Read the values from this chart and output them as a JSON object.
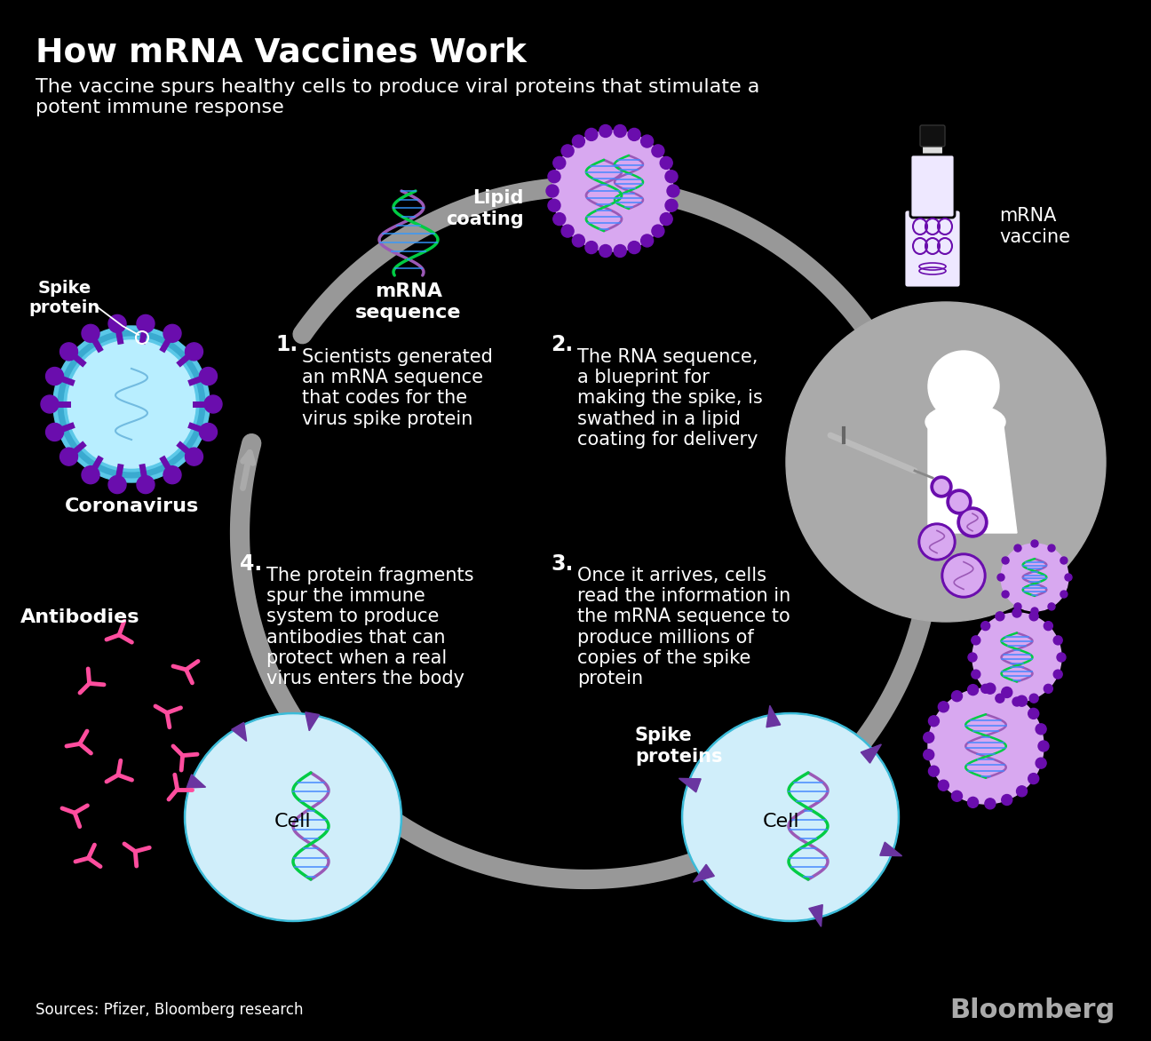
{
  "title": "How mRNA Vaccines Work",
  "subtitle": "The vaccine spurs healthy cells to produce viral proteins that stimulate a\npotent immune response",
  "bg_color": "#000000",
  "sources": "Sources: Pfizer, Bloomberg research",
  "bloomberg": "Bloomberg",
  "step1_num": "1.",
  "step1_text": "Scientists generated\nan mRNA sequence\nthat codes for the\nvirus spike protein",
  "step2_num": "2.",
  "step2_text": "The RNA sequence,\na blueprint for\nmaking the spike, is\nswathed in a lipid\ncoating for delivery",
  "step3_num": "3.",
  "step3_text": "Once it arrives, cells\nread the information in\nthe mRNA sequence to\nproduce millions of\ncopies of the spike\nprotein",
  "step4_num": "4.",
  "step4_text": "The protein fragments\nspur the immune\nsystem to produce\nantibodies that can\nprotect when a real\nvirus enters the body",
  "label_spike": "Spike\nprotein",
  "label_corona": "Coronavirus",
  "label_mrna": "mRNA\nsequence",
  "label_lipid": "Lipid\ncoating",
  "label_vaccine": "mRNA\nvaccine",
  "label_spike_proteins": "Spike\nproteins",
  "label_antibodies": "Antibodies",
  "label_cell1": "Cell",
  "label_cell2": "Cell",
  "purple_dark": "#6A0DAD",
  "purple_mid": "#9B59B6",
  "purple_light": "#D8A8F0",
  "purple_dots": "#7B2FBE",
  "blue_cell_outer": "#4DB8D4",
  "blue_cell_inner": "#C8EEF8",
  "blue_cell_fill": "#E0F5FF",
  "gray_arc": "#AAAAAA",
  "gray_person": "#999999",
  "white_person": "#FFFFFF",
  "pink": "#FF4D9E",
  "green_dna": "#00CC44",
  "blue_dna": "#4488FF"
}
